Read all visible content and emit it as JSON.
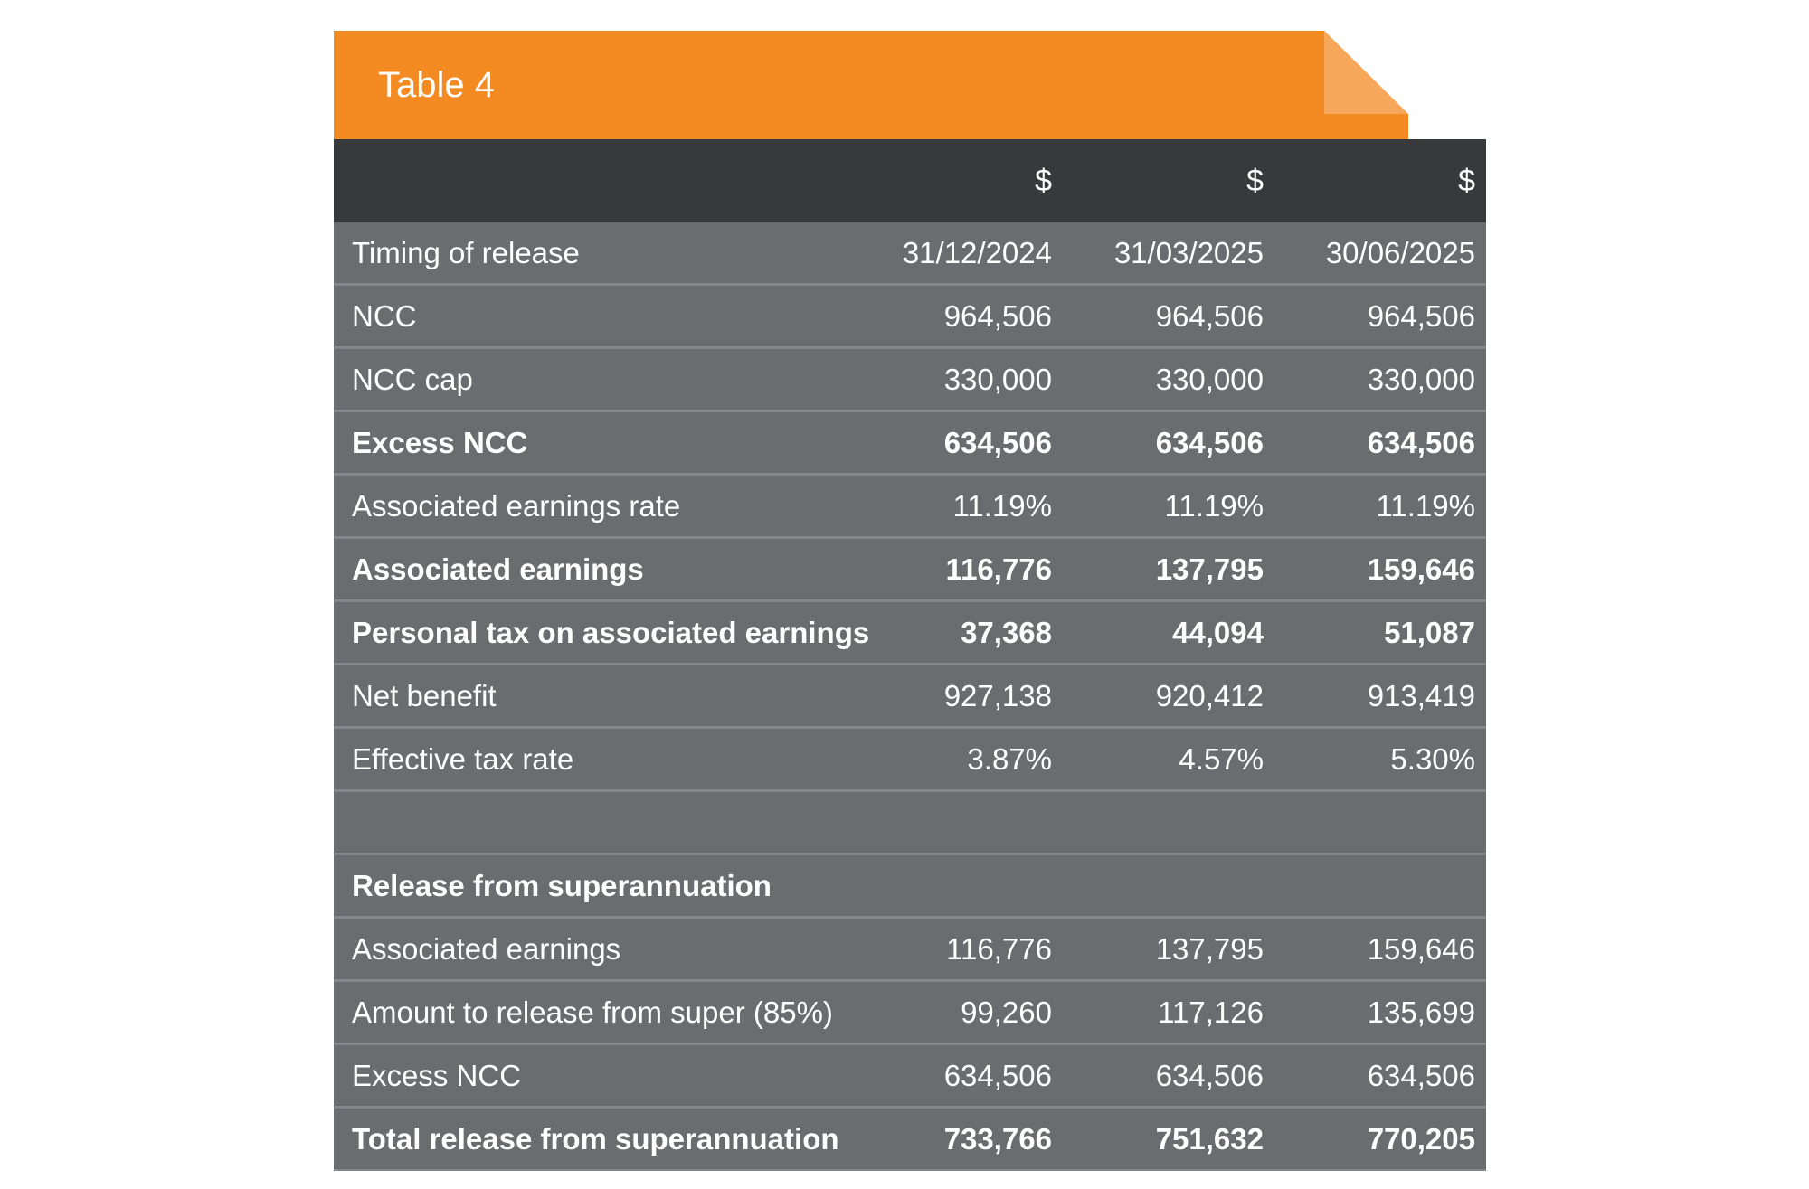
{
  "title": "Table 4",
  "currency_headers": [
    "$",
    "$",
    "$"
  ],
  "rows": [
    {
      "label": "Timing of release",
      "values": [
        "31/12/2024",
        "31/03/2025",
        "30/06/2025"
      ],
      "bold": false
    },
    {
      "label": "NCC",
      "values": [
        "964,506",
        "964,506",
        "964,506"
      ],
      "bold": false
    },
    {
      "label": "NCC cap",
      "values": [
        "330,000",
        "330,000",
        "330,000"
      ],
      "bold": false
    },
    {
      "label": "Excess NCC",
      "values": [
        "634,506",
        "634,506",
        "634,506"
      ],
      "bold": true
    },
    {
      "label": "Associated earnings rate",
      "values": [
        "11.19%",
        "11.19%",
        "11.19%"
      ],
      "bold": false
    },
    {
      "label": "Associated earnings",
      "values": [
        "116,776",
        "137,795",
        "159,646"
      ],
      "bold": true
    },
    {
      "label": "Personal tax on associated earnings",
      "values": [
        "37,368",
        "44,094",
        "51,087"
      ],
      "bold": true
    },
    {
      "label": "Net benefit",
      "values": [
        "927,138",
        "920,412",
        "913,419"
      ],
      "bold": false
    },
    {
      "label": "Effective tax rate",
      "values": [
        "3.87%",
        "4.57%",
        "5.30%"
      ],
      "bold": false
    },
    {
      "label": "",
      "values": [
        "",
        "",
        ""
      ],
      "bold": false
    },
    {
      "label": "Release from superannuation",
      "values": [
        "",
        "",
        ""
      ],
      "bold": true
    },
    {
      "label": "Associated earnings",
      "values": [
        "116,776",
        "137,795",
        "159,646"
      ],
      "bold": false
    },
    {
      "label": "Amount to release from super (85%)",
      "values": [
        "99,260",
        "117,126",
        "135,699"
      ],
      "bold": false
    },
    {
      "label": "Excess NCC",
      "values": [
        "634,506",
        "634,506",
        "634,506"
      ],
      "bold": false
    },
    {
      "label": "Total release from superannuation",
      "values": [
        "733,766",
        "751,632",
        "770,205"
      ],
      "bold": true
    }
  ],
  "colors": {
    "tab": "#f48a22",
    "tab_fold": "#f7a75a",
    "header": "#38393b",
    "row": "#6b6c70",
    "divider": "#84858a",
    "text": "#ffffff"
  }
}
